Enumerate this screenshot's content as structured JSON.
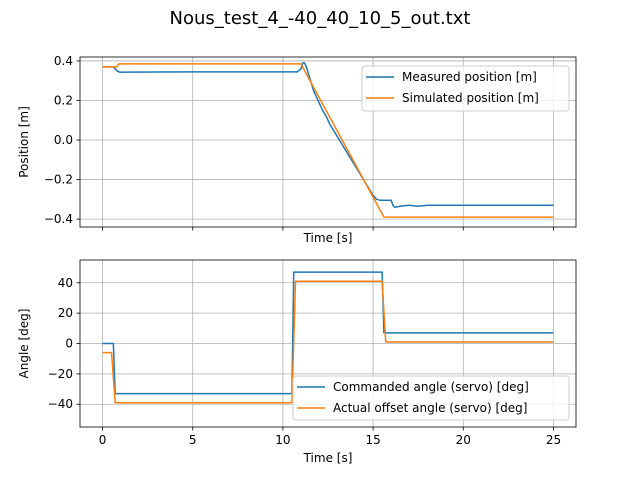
{
  "figure": {
    "title": "Nous_test_4_-40_40_10_5_out.txt"
  },
  "colors": {
    "blue": "#1f77b4",
    "orange": "#ff7f0e",
    "grid": "#b0b0b0",
    "legend_edge": "#cccccc"
  },
  "chart_data": [
    {
      "type": "line",
      "xlabel": "Time [s]",
      "ylabel": "Position [m]",
      "xlim": [
        -1.25,
        26.25
      ],
      "ylim": [
        -0.44,
        0.42
      ],
      "grid": true,
      "legend_placement": "top-right",
      "x_ticks": [
        0,
        5,
        10,
        15,
        20,
        25
      ],
      "x_tick_labels_visible": false,
      "y_ticks": [
        -0.4,
        -0.2,
        0.0,
        0.2,
        0.4
      ],
      "y_tick_labels": [
        "−0.4",
        "−0.2",
        "0.0",
        "0.2",
        "0.4"
      ],
      "series": [
        {
          "name": "Measured position [m]",
          "color": "#1f77b4",
          "x": [
            0,
            0.6,
            0.7,
            0.8,
            0.9,
            1.0,
            5,
            10.5,
            10.8,
            11.0,
            11.1,
            11.2,
            11.3,
            11.4,
            11.5,
            11.6,
            11.7,
            11.8,
            11.9,
            12.0,
            12.2,
            12.4,
            12.6,
            12.8,
            13.0,
            13.2,
            13.4,
            13.6,
            13.8,
            14.0,
            14.2,
            14.4,
            14.6,
            14.8,
            15.0,
            15.2,
            15.4,
            15.6,
            16.0,
            16.1,
            16.2,
            16.5,
            17.0,
            17.5,
            18.0,
            19.0,
            20,
            25
          ],
          "y": [
            0.37,
            0.37,
            0.36,
            0.35,
            0.345,
            0.343,
            0.345,
            0.345,
            0.345,
            0.36,
            0.39,
            0.39,
            0.37,
            0.34,
            0.31,
            0.28,
            0.25,
            0.23,
            0.21,
            0.19,
            0.15,
            0.12,
            0.08,
            0.05,
            0.02,
            -0.01,
            -0.04,
            -0.07,
            -0.1,
            -0.13,
            -0.16,
            -0.19,
            -0.22,
            -0.25,
            -0.28,
            -0.3,
            -0.305,
            -0.305,
            -0.305,
            -0.33,
            -0.34,
            -0.335,
            -0.33,
            -0.335,
            -0.33,
            -0.33,
            -0.33,
            -0.33
          ]
        },
        {
          "name": "Simulated position [m]",
          "color": "#ff7f0e",
          "x": [
            0,
            0.8,
            0.9,
            10.9,
            11.0,
            15.6,
            25
          ],
          "y": [
            0.37,
            0.37,
            0.385,
            0.385,
            0.385,
            -0.39,
            -0.39
          ]
        }
      ]
    },
    {
      "type": "line",
      "xlabel": "Time [s]",
      "ylabel": "Angle [deg]",
      "xlim": [
        -1.25,
        26.25
      ],
      "ylim": [
        -55,
        55
      ],
      "grid": true,
      "legend_placement": "bottom-right",
      "x_ticks": [
        0,
        5,
        10,
        15,
        20,
        25
      ],
      "x_tick_labels": [
        "0",
        "5",
        "10",
        "15",
        "20",
        "25"
      ],
      "y_ticks": [
        -40,
        -20,
        0,
        20,
        40
      ],
      "y_tick_labels": [
        "−40",
        "−20",
        "0",
        "20",
        "40"
      ],
      "series": [
        {
          "name": "Commanded angle (servo) [deg]",
          "color": "#1f77b4",
          "x": [
            0,
            0.6,
            0.7,
            10.5,
            10.6,
            15.5,
            15.6,
            25
          ],
          "y": [
            0,
            0,
            -33,
            -33,
            47,
            47,
            7,
            7
          ]
        },
        {
          "name": "Actual offset angle (servo) [deg]",
          "color": "#ff7f0e",
          "x": [
            0,
            0.5,
            0.7,
            10.5,
            10.7,
            15.5,
            15.7,
            25
          ],
          "y": [
            -6,
            -6,
            -39,
            -39,
            41,
            41,
            1,
            1
          ]
        }
      ]
    }
  ]
}
